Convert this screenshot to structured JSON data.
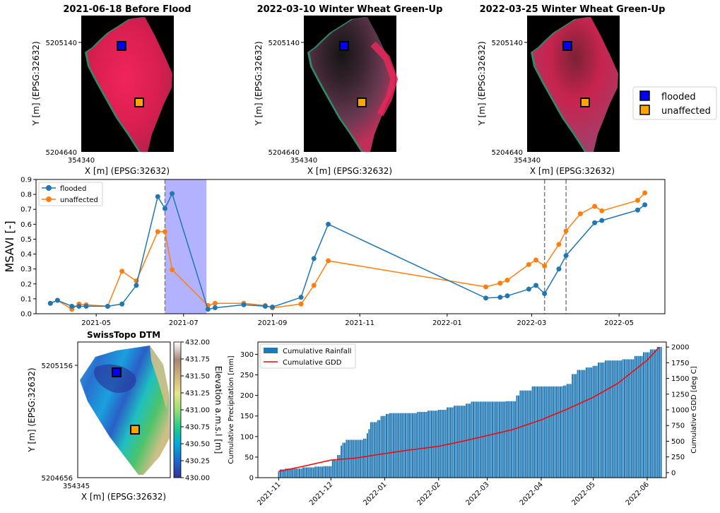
{
  "colors": {
    "flooded": "#1f77b4",
    "unaffected": "#ff7f0e",
    "flood_span": "#0000ff",
    "rain_bar": "#1f77b4",
    "gdd_line": "#ff0000",
    "marker_flooded": "#0000ff",
    "marker_unaffected": "#ffa500"
  },
  "satellite_panels": [
    {
      "title": "2021-06-18 Before Flood",
      "style": "before",
      "ytick": "5205140",
      "ybottom": "5204640",
      "xtick": "354340",
      "xlabel": "X [m] (EPSG:32632)",
      "ylabel": "Y [m] (EPSG:32632)"
    },
    {
      "title": "2022-03-10 Winter Wheat Green-Up",
      "style": "greenup1",
      "ytick": "5205140",
      "ybottom": "5204640",
      "xtick": "354340",
      "xlabel": "X [m] (EPSG:32632)",
      "ylabel": "Y [m] (EPSG:32632)"
    },
    {
      "title": "2022-03-25 Winter Wheat Green-Up",
      "style": "greenup2",
      "ytick": "5205140",
      "ybottom": "5204640",
      "xtick": "354340",
      "xlabel": "X [m] (EPSG:32632)",
      "ylabel": "Y [m] (EPSG:32632)"
    }
  ],
  "marker_legend": {
    "flooded": "flooded",
    "unaffected": "unaffected"
  },
  "chart_data": [
    {
      "type": "line",
      "ylabel": "MSAVI [-]",
      "ylim": [
        0,
        0.9
      ],
      "yticks": [
        "0.0",
        "0.1",
        "0.2",
        "0.3",
        "0.4",
        "0.5",
        "0.6",
        "0.7",
        "0.8",
        "0.9"
      ],
      "xlim": [
        "2021-03-20",
        "2022-06-02"
      ],
      "xticks": [
        {
          "date": "2021-05-01",
          "label": "2021-05"
        },
        {
          "date": "2021-07-01",
          "label": "2021-07"
        },
        {
          "date": "2021-09-01",
          "label": "2021-09"
        },
        {
          "date": "2021-11-01",
          "label": "2021-11"
        },
        {
          "date": "2022-01-01",
          "label": "2022-01"
        },
        {
          "date": "2022-03-01",
          "label": "2022-03"
        },
        {
          "date": "2022-05-01",
          "label": "2022-05"
        }
      ],
      "flood_span": [
        "2021-06-18",
        "2021-07-17"
      ],
      "vlines": [
        "2022-03-10",
        "2022-03-25"
      ],
      "legend": "top-left",
      "series": [
        {
          "name": "flooded",
          "points": [
            [
              "2021-03-30",
              0.07
            ],
            [
              "2021-04-04",
              0.09
            ],
            [
              "2021-04-14",
              0.05
            ],
            [
              "2021-04-19",
              0.05
            ],
            [
              "2021-04-24",
              0.05
            ],
            [
              "2021-05-09",
              0.05
            ],
            [
              "2021-05-19",
              0.065
            ],
            [
              "2021-05-29",
              0.19
            ],
            [
              "2021-06-13",
              0.785
            ],
            [
              "2021-06-18",
              0.705
            ],
            [
              "2021-06-23",
              0.805
            ],
            [
              "2021-07-18",
              0.03
            ],
            [
              "2021-07-23",
              0.04
            ],
            [
              "2021-08-12",
              0.06
            ],
            [
              "2021-08-27",
              0.05
            ],
            [
              "2021-09-01",
              0.045
            ],
            [
              "2021-09-21",
              0.11
            ],
            [
              "2021-09-30",
              0.37
            ],
            [
              "2021-10-10",
              0.6
            ],
            [
              "2022-01-28",
              0.105
            ],
            [
              "2022-02-07",
              0.11
            ],
            [
              "2022-02-12",
              0.12
            ],
            [
              "2022-02-27",
              0.165
            ],
            [
              "2022-03-04",
              0.19
            ],
            [
              "2022-03-10",
              0.135
            ],
            [
              "2022-03-20",
              0.3
            ],
            [
              "2022-03-25",
              0.39
            ],
            [
              "2022-04-14",
              0.61
            ],
            [
              "2022-04-19",
              0.625
            ],
            [
              "2022-05-14",
              0.695
            ],
            [
              "2022-05-19",
              0.73
            ]
          ]
        },
        {
          "name": "unaffected",
          "points": [
            [
              "2021-03-30",
              0.07
            ],
            [
              "2021-04-04",
              0.09
            ],
            [
              "2021-04-14",
              0.03
            ],
            [
              "2021-04-19",
              0.065
            ],
            [
              "2021-04-24",
              0.06
            ],
            [
              "2021-05-09",
              0.05
            ],
            [
              "2021-05-19",
              0.285
            ],
            [
              "2021-05-29",
              0.22
            ],
            [
              "2021-06-13",
              0.55
            ],
            [
              "2021-06-18",
              0.55
            ],
            [
              "2021-06-23",
              0.295
            ],
            [
              "2021-07-18",
              0.055
            ],
            [
              "2021-07-23",
              0.07
            ],
            [
              "2021-08-12",
              0.07
            ],
            [
              "2021-08-27",
              0.055
            ],
            [
              "2021-09-01",
              0.04
            ],
            [
              "2021-09-21",
              0.065
            ],
            [
              "2021-09-30",
              0.19
            ],
            [
              "2021-10-10",
              0.355
            ],
            [
              "2022-01-28",
              0.18
            ],
            [
              "2022-02-07",
              0.205
            ],
            [
              "2022-02-12",
              0.225
            ],
            [
              "2022-02-27",
              0.33
            ],
            [
              "2022-03-04",
              0.36
            ],
            [
              "2022-03-10",
              0.32
            ],
            [
              "2022-03-20",
              0.465
            ],
            [
              "2022-03-25",
              0.555
            ],
            [
              "2022-04-04",
              0.67
            ],
            [
              "2022-04-14",
              0.72
            ],
            [
              "2022-04-19",
              0.69
            ],
            [
              "2022-05-14",
              0.76
            ],
            [
              "2022-05-19",
              0.81
            ]
          ]
        }
      ]
    },
    {
      "type": "heatmap",
      "title": "SwissTopo DTM",
      "colorbar_label": "Elevation a.m.s.l [m]",
      "vlim": [
        430.0,
        432.0
      ],
      "colorbar_ticks": [
        "432.00",
        "431.75",
        "431.50",
        "431.25",
        "431.00",
        "430.75",
        "430.50",
        "430.25",
        "430.00"
      ],
      "ytick": "5205156",
      "ybottom": "5204656",
      "xtick": "354345",
      "xlabel": "X [m] (EPSG:32632)",
      "ylabel": "Y [m] (EPSG:32632)"
    },
    {
      "type": "bar",
      "ylabel_left": "Cumulative Precipitation [mm]",
      "ylabel_right": "Cumulative GDD [deg C]",
      "ylim_left": [
        0,
        330
      ],
      "ylim_right": [
        -80,
        2080
      ],
      "yticks_left": [
        0,
        50,
        100,
        150,
        200,
        250,
        300
      ],
      "yticks_right": [
        0,
        250,
        500,
        750,
        1000,
        1250,
        1500,
        1750,
        2000
      ],
      "xlim": [
        "2021-10-20",
        "2022-06-12"
      ],
      "xticks": [
        {
          "date": "2021-11-01",
          "label": "2021-11"
        },
        {
          "date": "2021-12-01",
          "label": "2021-12"
        },
        {
          "date": "2022-01-01",
          "label": "2022-01"
        },
        {
          "date": "2022-02-01",
          "label": "2022-02"
        },
        {
          "date": "2022-03-01",
          "label": "2022-03"
        },
        {
          "date": "2022-04-01",
          "label": "2022-04"
        },
        {
          "date": "2022-05-01",
          "label": "2022-05"
        },
        {
          "date": "2022-06-01",
          "label": "2022-06"
        }
      ],
      "start_date": "2021-11-01",
      "end_date": "2022-06-09",
      "rain_steps": [
        [
          "2021-11-01",
          15
        ],
        [
          "2021-11-02",
          20
        ],
        [
          "2021-11-05",
          22
        ],
        [
          "2021-11-15",
          25
        ],
        [
          "2021-11-22",
          27
        ],
        [
          "2021-11-27",
          28
        ],
        [
          "2021-12-02",
          42
        ],
        [
          "2021-12-05",
          55
        ],
        [
          "2021-12-07",
          78
        ],
        [
          "2021-12-08",
          85
        ],
        [
          "2021-12-10",
          92
        ],
        [
          "2021-12-20",
          95
        ],
        [
          "2021-12-22",
          108
        ],
        [
          "2021-12-23",
          118
        ],
        [
          "2021-12-24",
          135
        ],
        [
          "2021-12-28",
          140
        ],
        [
          "2021-12-30",
          150
        ],
        [
          "2022-01-02",
          155
        ],
        [
          "2022-01-04",
          157
        ],
        [
          "2022-01-20",
          160
        ],
        [
          "2022-01-26",
          163
        ],
        [
          "2022-02-01",
          165
        ],
        [
          "2022-02-06",
          171
        ],
        [
          "2022-02-10",
          175
        ],
        [
          "2022-02-17",
          180
        ],
        [
          "2022-02-20",
          185
        ],
        [
          "2022-03-12",
          186
        ],
        [
          "2022-03-18",
          200
        ],
        [
          "2022-03-20",
          212
        ],
        [
          "2022-03-27",
          222
        ],
        [
          "2022-04-14",
          224
        ],
        [
          "2022-04-16",
          228
        ],
        [
          "2022-04-19",
          252
        ],
        [
          "2022-04-22",
          262
        ],
        [
          "2022-04-27",
          268
        ],
        [
          "2022-05-01",
          272
        ],
        [
          "2022-05-04",
          280
        ],
        [
          "2022-05-08",
          285
        ],
        [
          "2022-05-18",
          288
        ],
        [
          "2022-05-25",
          296
        ],
        [
          "2022-05-30",
          305
        ],
        [
          "2022-06-03",
          312
        ],
        [
          "2022-06-07",
          318
        ]
      ],
      "gdd_points": [
        [
          "2021-11-01",
          20
        ],
        [
          "2021-11-15",
          100
        ],
        [
          "2021-12-01",
          200
        ],
        [
          "2021-12-15",
          230
        ],
        [
          "2021-12-31",
          300
        ],
        [
          "2022-01-15",
          360
        ],
        [
          "2022-02-01",
          420
        ],
        [
          "2022-02-15",
          500
        ],
        [
          "2022-03-01",
          590
        ],
        [
          "2022-03-15",
          680
        ],
        [
          "2022-04-01",
          840
        ],
        [
          "2022-04-15",
          1000
        ],
        [
          "2022-05-01",
          1200
        ],
        [
          "2022-05-15",
          1420
        ],
        [
          "2022-06-01",
          1790
        ],
        [
          "2022-06-08",
          2000
        ]
      ],
      "legend": "top-left",
      "series": [
        {
          "name": "Cumulative Rainfall"
        },
        {
          "name": "Cumulative GDD"
        }
      ]
    }
  ]
}
